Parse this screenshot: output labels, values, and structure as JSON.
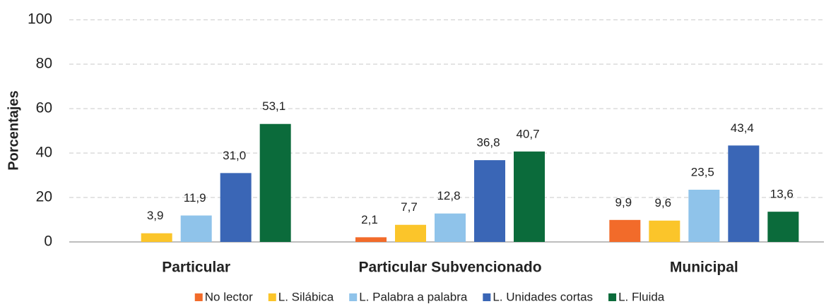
{
  "chart_data": {
    "type": "bar",
    "y_label": "Porcentajes",
    "categories": [
      "Particular",
      "Particular Subvencionado",
      "Municipal"
    ],
    "series": [
      {
        "name": "No lector",
        "color": "#f26b2a",
        "values": [
          null,
          2.1,
          9.9
        ],
        "value_labels": [
          null,
          "2,1",
          "9,9"
        ]
      },
      {
        "name": "L. Silábica",
        "color": "#fbc52a",
        "values": [
          3.9,
          7.7,
          9.6
        ],
        "value_labels": [
          "3,9",
          "7,7",
          "9,6"
        ]
      },
      {
        "name": "L. Palabra a palabra",
        "color": "#8fc3ea",
        "values": [
          11.9,
          12.8,
          23.5
        ],
        "value_labels": [
          "11,9",
          "12,8",
          "23,5"
        ]
      },
      {
        "name": "L. Unidades cortas",
        "color": "#3a66b6",
        "values": [
          31.0,
          36.8,
          43.4
        ],
        "value_labels": [
          "31,0",
          "36,8",
          "43,4"
        ]
      },
      {
        "name": "L. Fluida",
        "color": "#0b6b3b",
        "values": [
          53.1,
          40.7,
          13.6
        ],
        "value_labels": [
          "53,1",
          "40,7",
          "13,6"
        ]
      }
    ],
    "ylim": [
      0,
      100
    ],
    "yticks": [
      0,
      20,
      40,
      60,
      80,
      100
    ],
    "grid": true,
    "legend": "bottom"
  }
}
